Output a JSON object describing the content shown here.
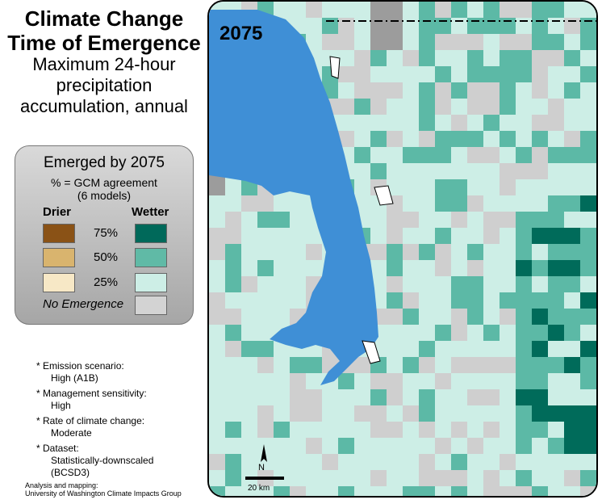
{
  "title": "Climate Change Time of Emergence",
  "subtitle": "Maximum 24-hour precipitation accumulation, annual",
  "map": {
    "year_label": "2075",
    "scale_label": "20 km",
    "north_label": "N",
    "colors": {
      "water": "#3f8fd6",
      "no_emergence": "#cfcfcf",
      "canada": "#9c9c9c",
      "wetter_25": "#cdeee6",
      "wetter_50": "#5cb9a6",
      "wetter_75": "#006b5a"
    }
  },
  "legend": {
    "heading": "Emerged by 2075",
    "subheading_line1": "% = GCM agreement",
    "subheading_line2": "(6 models)",
    "drier_label": "Drier",
    "wetter_label": "Wetter",
    "levels": [
      {
        "pct": "75%",
        "drier_color": "#8a5216",
        "wetter_color": "#00695a"
      },
      {
        "pct": "50%",
        "drier_color": "#d9b46e",
        "wetter_color": "#60baa6"
      },
      {
        "pct": "25%",
        "drier_color": "#f7e8c6",
        "wetter_color": "#cdeee6"
      }
    ],
    "no_emergence_label": "No Emergence",
    "no_emergence_color": "#d3d3d3"
  },
  "notes": [
    {
      "label": "* Emission scenario:",
      "value": "High (A1B)"
    },
    {
      "label": "* Management sensitivity:",
      "value": "High"
    },
    {
      "label": "* Rate of climate change:",
      "value": "Moderate"
    },
    {
      "label": "* Dataset:",
      "value": "Statistically-downscaled (BCSD3)"
    }
  ],
  "credit_line1": "Analysis and mapping:",
  "credit_line2": "University of Washington Climate Impacts Group"
}
